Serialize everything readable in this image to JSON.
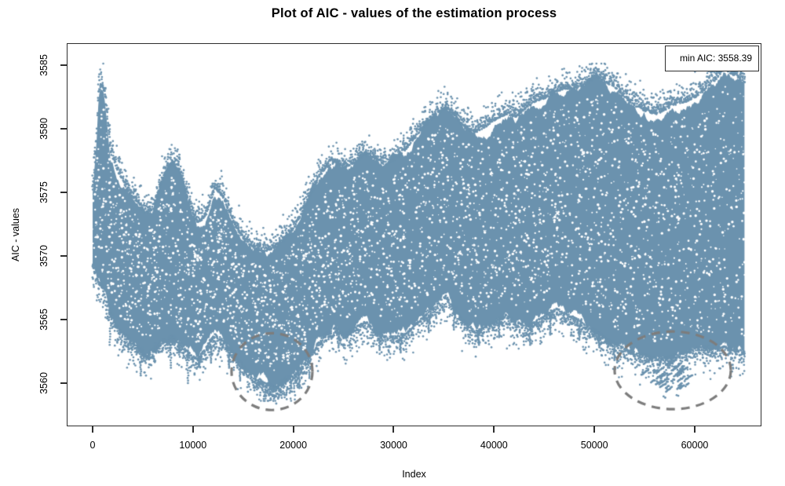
{
  "chart_data": {
    "type": "scatter",
    "title": "Plot of AIC - values of the estimation process",
    "xlabel": "Index",
    "ylabel": "AIC - values",
    "xlim": [
      -2580,
      66650
    ],
    "ylim": [
      3556.6,
      3586.7
    ],
    "xticks": [
      0,
      10000,
      20000,
      30000,
      40000,
      50000,
      60000
    ],
    "yticks": [
      3560,
      3565,
      3570,
      3575,
      3580,
      3585
    ],
    "grid": false,
    "background": "#ffffff",
    "point_color": "#6b92ae",
    "axis_color": "#2e2e2e",
    "n_points_approx": 65000,
    "min_aic": 3558.39,
    "min_index": 18300,
    "legend": {
      "label": "min AIC: 3558.39",
      "position": "topright"
    },
    "envelope": [
      [
        0,
        3575,
        3569.5
      ],
      [
        400,
        3579,
        3568.5
      ],
      [
        600,
        3582.5,
        3568.2
      ],
      [
        800,
        3583.2,
        3568
      ],
      [
        1100,
        3583,
        3567.5
      ],
      [
        1300,
        3582,
        3567
      ],
      [
        1800,
        3578,
        3565.5
      ],
      [
        2500,
        3576.5,
        3564.5
      ],
      [
        3500,
        3575,
        3563.5
      ],
      [
        4500,
        3574,
        3563
      ],
      [
        5300,
        3573.2,
        3562.2
      ],
      [
        6000,
        3573.5,
        3562.8
      ],
      [
        7000,
        3576,
        3563.5
      ],
      [
        7900,
        3577.2,
        3563.8
      ],
      [
        8700,
        3576.5,
        3563.2
      ],
      [
        9600,
        3574,
        3562.5
      ],
      [
        10400,
        3572.5,
        3562
      ],
      [
        11200,
        3572.8,
        3562.8
      ],
      [
        12200,
        3575.2,
        3564
      ],
      [
        13000,
        3574.5,
        3563.5
      ],
      [
        14000,
        3572.5,
        3562.5
      ],
      [
        15000,
        3571.2,
        3561.5
      ],
      [
        16000,
        3570.5,
        3560.5
      ],
      [
        17000,
        3570.2,
        3560.2
      ],
      [
        18200,
        3570.5,
        3559.8
      ],
      [
        19200,
        3571.2,
        3560.4
      ],
      [
        20200,
        3572.2,
        3560.8
      ],
      [
        21200,
        3573.8,
        3561.8
      ],
      [
        22200,
        3575.5,
        3563
      ],
      [
        23200,
        3576.8,
        3564
      ],
      [
        24200,
        3577.2,
        3564.5
      ],
      [
        25200,
        3576.8,
        3564
      ],
      [
        26200,
        3577.2,
        3564.5
      ],
      [
        27200,
        3577.8,
        3565
      ],
      [
        28200,
        3577.5,
        3564.2
      ],
      [
        29200,
        3577,
        3563.8
      ],
      [
        30200,
        3577.5,
        3563.8
      ],
      [
        31200,
        3578.2,
        3564
      ],
      [
        32200,
        3579.2,
        3564.8
      ],
      [
        33200,
        3580.2,
        3565.5
      ],
      [
        34200,
        3581,
        3566.2
      ],
      [
        35200,
        3581.5,
        3567
      ],
      [
        36200,
        3580.8,
        3565.8
      ],
      [
        37200,
        3579.8,
        3564.8
      ],
      [
        38200,
        3579.6,
        3564.2
      ],
      [
        39200,
        3580,
        3564.6
      ],
      [
        40200,
        3580.6,
        3565
      ],
      [
        41200,
        3581,
        3565.5
      ],
      [
        42200,
        3580.8,
        3565
      ],
      [
        43200,
        3581.5,
        3564.5
      ],
      [
        44200,
        3582,
        3565
      ],
      [
        45200,
        3582.3,
        3565.5
      ],
      [
        46200,
        3582.8,
        3566
      ],
      [
        47200,
        3583,
        3565.6
      ],
      [
        48200,
        3583,
        3565.2
      ],
      [
        49200,
        3583.4,
        3564.6
      ],
      [
        50200,
        3584,
        3564.2
      ],
      [
        51200,
        3583.5,
        3563.6
      ],
      [
        52200,
        3583,
        3563.2
      ],
      [
        53200,
        3582.2,
        3562.8
      ],
      [
        54200,
        3581.6,
        3562.5
      ],
      [
        55200,
        3581.2,
        3562.3
      ],
      [
        56200,
        3581,
        3562.1
      ],
      [
        57200,
        3581.4,
        3562.1
      ],
      [
        58200,
        3581.8,
        3562.4
      ],
      [
        59200,
        3582,
        3562.6
      ],
      [
        60200,
        3582.4,
        3562.9
      ],
      [
        61200,
        3583,
        3563
      ],
      [
        62200,
        3583.8,
        3563
      ],
      [
        62900,
        3584.6,
        3563
      ],
      [
        63600,
        3584.2,
        3562.9
      ],
      [
        64600,
        3583.8,
        3562.7
      ],
      [
        65000,
        3583.5,
        3562.6
      ]
    ],
    "bottom_spikes": [
      [
        1700,
        3563
      ],
      [
        3300,
        3563.8
      ],
      [
        4800,
        3560.6
      ],
      [
        5600,
        3562
      ],
      [
        6400,
        3562.6
      ],
      [
        7800,
        3561.2
      ],
      [
        8600,
        3562.4
      ],
      [
        9500,
        3560
      ],
      [
        10600,
        3561.3
      ],
      [
        11800,
        3561.6
      ],
      [
        13600,
        3561.2
      ],
      [
        14700,
        3560.2
      ],
      [
        20600,
        3559.6
      ],
      [
        21600,
        3560.4
      ],
      [
        24500,
        3562.8
      ],
      [
        28600,
        3562.6
      ],
      [
        30700,
        3562.4
      ],
      [
        33500,
        3564
      ],
      [
        36000,
        3564.2
      ],
      [
        38500,
        3563
      ],
      [
        40500,
        3563.6
      ],
      [
        43600,
        3563
      ],
      [
        45600,
        3563.8
      ],
      [
        48500,
        3563.4
      ],
      [
        50500,
        3562.8
      ],
      [
        52000,
        3561.8
      ]
    ],
    "outlier_zones": [
      {
        "x_from": 16000,
        "x_to": 21600,
        "x_center": 18300,
        "min_value": 3558.39
      },
      {
        "x_from": 53400,
        "x_to": 60700,
        "x_center": 57200,
        "min_value": 3558.85
      }
    ],
    "annotations": [
      {
        "type": "ellipse",
        "x_center": 17875,
        "y_center": 3560.9,
        "rx_index": 4030,
        "ry_value": 3.02,
        "style": "dashed",
        "color": "#7d7d7d"
      },
      {
        "type": "ellipse",
        "x_center": 57810,
        "y_center": 3561.0,
        "rx_index": 5790,
        "ry_value": 3.05,
        "style": "dashed",
        "color": "#7d7d7d"
      }
    ]
  }
}
